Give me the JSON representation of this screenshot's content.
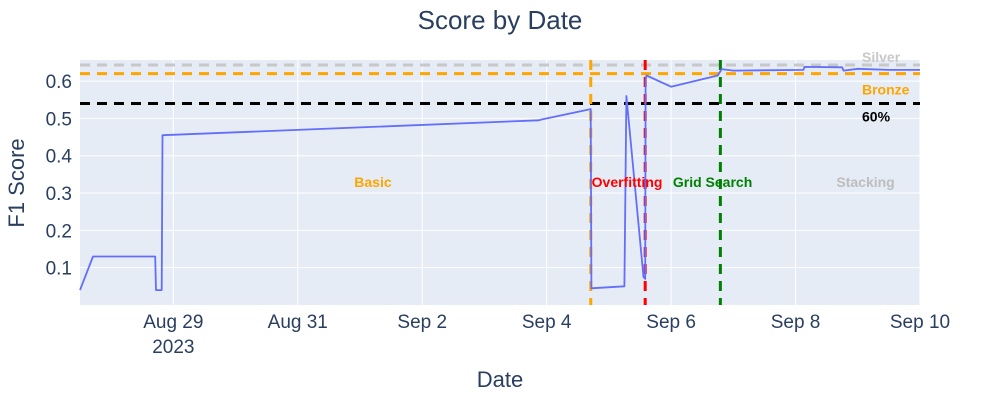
{
  "chart_data": {
    "type": "line",
    "title": "Score by Date",
    "xlabel": "Date",
    "ylabel": "F1 Score",
    "xlim": [
      "2023-08-27 12:00",
      "2023-09-10 00:00"
    ],
    "ylim": [
      0.0,
      0.6565
    ],
    "x_ticks": [
      {
        "date": "2023-08-29 00:00",
        "label": "Aug 29",
        "sublabel": "2023"
      },
      {
        "date": "2023-08-31 00:00",
        "label": "Aug 31",
        "sublabel": ""
      },
      {
        "date": "2023-09-02 00:00",
        "label": "Sep 2",
        "sublabel": ""
      },
      {
        "date": "2023-09-04 00:00",
        "label": "Sep 4",
        "sublabel": ""
      },
      {
        "date": "2023-09-06 00:00",
        "label": "Sep 6",
        "sublabel": ""
      },
      {
        "date": "2023-09-08 00:00",
        "label": "Sep 8",
        "sublabel": ""
      },
      {
        "date": "2023-09-10 00:00",
        "label": "Sep 10",
        "sublabel": ""
      }
    ],
    "y_ticks": [
      {
        "value": 0.1,
        "label": "0.1"
      },
      {
        "value": 0.2,
        "label": "0.2"
      },
      {
        "value": 0.3,
        "label": "0.3"
      },
      {
        "value": 0.4,
        "label": "0.4"
      },
      {
        "value": 0.5,
        "label": "0.5"
      },
      {
        "value": 0.6,
        "label": "0.6"
      }
    ],
    "grid": true,
    "line_color": "#636efa",
    "series": [
      {
        "x": [
          "2023-08-27 12:00",
          "2023-08-27 17:00",
          "2023-08-28 17:00",
          "2023-08-28 17:20",
          "2023-08-28 19:30",
          "2023-08-28 19:50",
          "2023-08-28 20:00",
          "2023-09-03 21:00",
          "2023-09-03 22:00",
          "2023-09-04 17:00",
          "2023-09-04 17:15",
          "2023-09-04 18:00",
          "2023-09-05 06:00",
          "2023-09-05 06:45",
          "2023-09-05 13:20",
          "2023-09-05 14:00",
          "2023-09-05 14:10",
          "2023-09-05 14:30",
          "2023-09-06 00:00",
          "2023-09-06 18:00",
          "2023-09-06 19:30",
          "2023-09-07 00:00",
          "2023-09-08 03:00",
          "2023-09-08 03:30",
          "2023-09-08 18:00",
          "2023-09-08 18:30",
          "2023-09-09 00:00",
          "2023-09-09 12:00",
          "2023-09-10 00:00"
        ],
        "y": [
          0.04,
          0.13,
          0.13,
          0.04,
          0.04,
          0.455,
          0.455,
          0.495,
          0.497,
          0.525,
          0.045,
          0.045,
          0.05,
          0.56,
          0.075,
          0.07,
          0.605,
          0.615,
          0.585,
          0.615,
          0.632,
          0.628,
          0.63,
          0.638,
          0.637,
          0.628,
          0.633,
          0.63,
          0.63
        ]
      }
    ],
    "horizontal_lines": [
      {
        "value": 0.643,
        "label": "Silver",
        "color": "#c8c8c8"
      },
      {
        "value": 0.62,
        "label": "Bronze",
        "color": "#ffa500"
      },
      {
        "value": 0.54,
        "label": "60%",
        "color": "#000000"
      }
    ],
    "vertical_lines": [
      {
        "date": "2023-09-04 17:00",
        "color": "#ffa500"
      },
      {
        "date": "2023-09-05 14:00",
        "color": "#ff0000"
      },
      {
        "date": "2023-09-06 19:00",
        "color": "#008000"
      }
    ],
    "annotations": [
      {
        "text": "Basic",
        "date": "2023-09-01 05:00",
        "y": 0.33,
        "color": "#ffa500"
      },
      {
        "text": "Overfitting",
        "date": "2023-09-05 07:00",
        "y": 0.33,
        "color": "#ff0000"
      },
      {
        "text": "Grid Search",
        "date": "2023-09-06 16:00",
        "y": 0.33,
        "color": "#008000"
      },
      {
        "text": "Stacking",
        "date": "2023-09-09 03:00",
        "y": 0.33,
        "color": "#bdbdbd"
      }
    ]
  }
}
